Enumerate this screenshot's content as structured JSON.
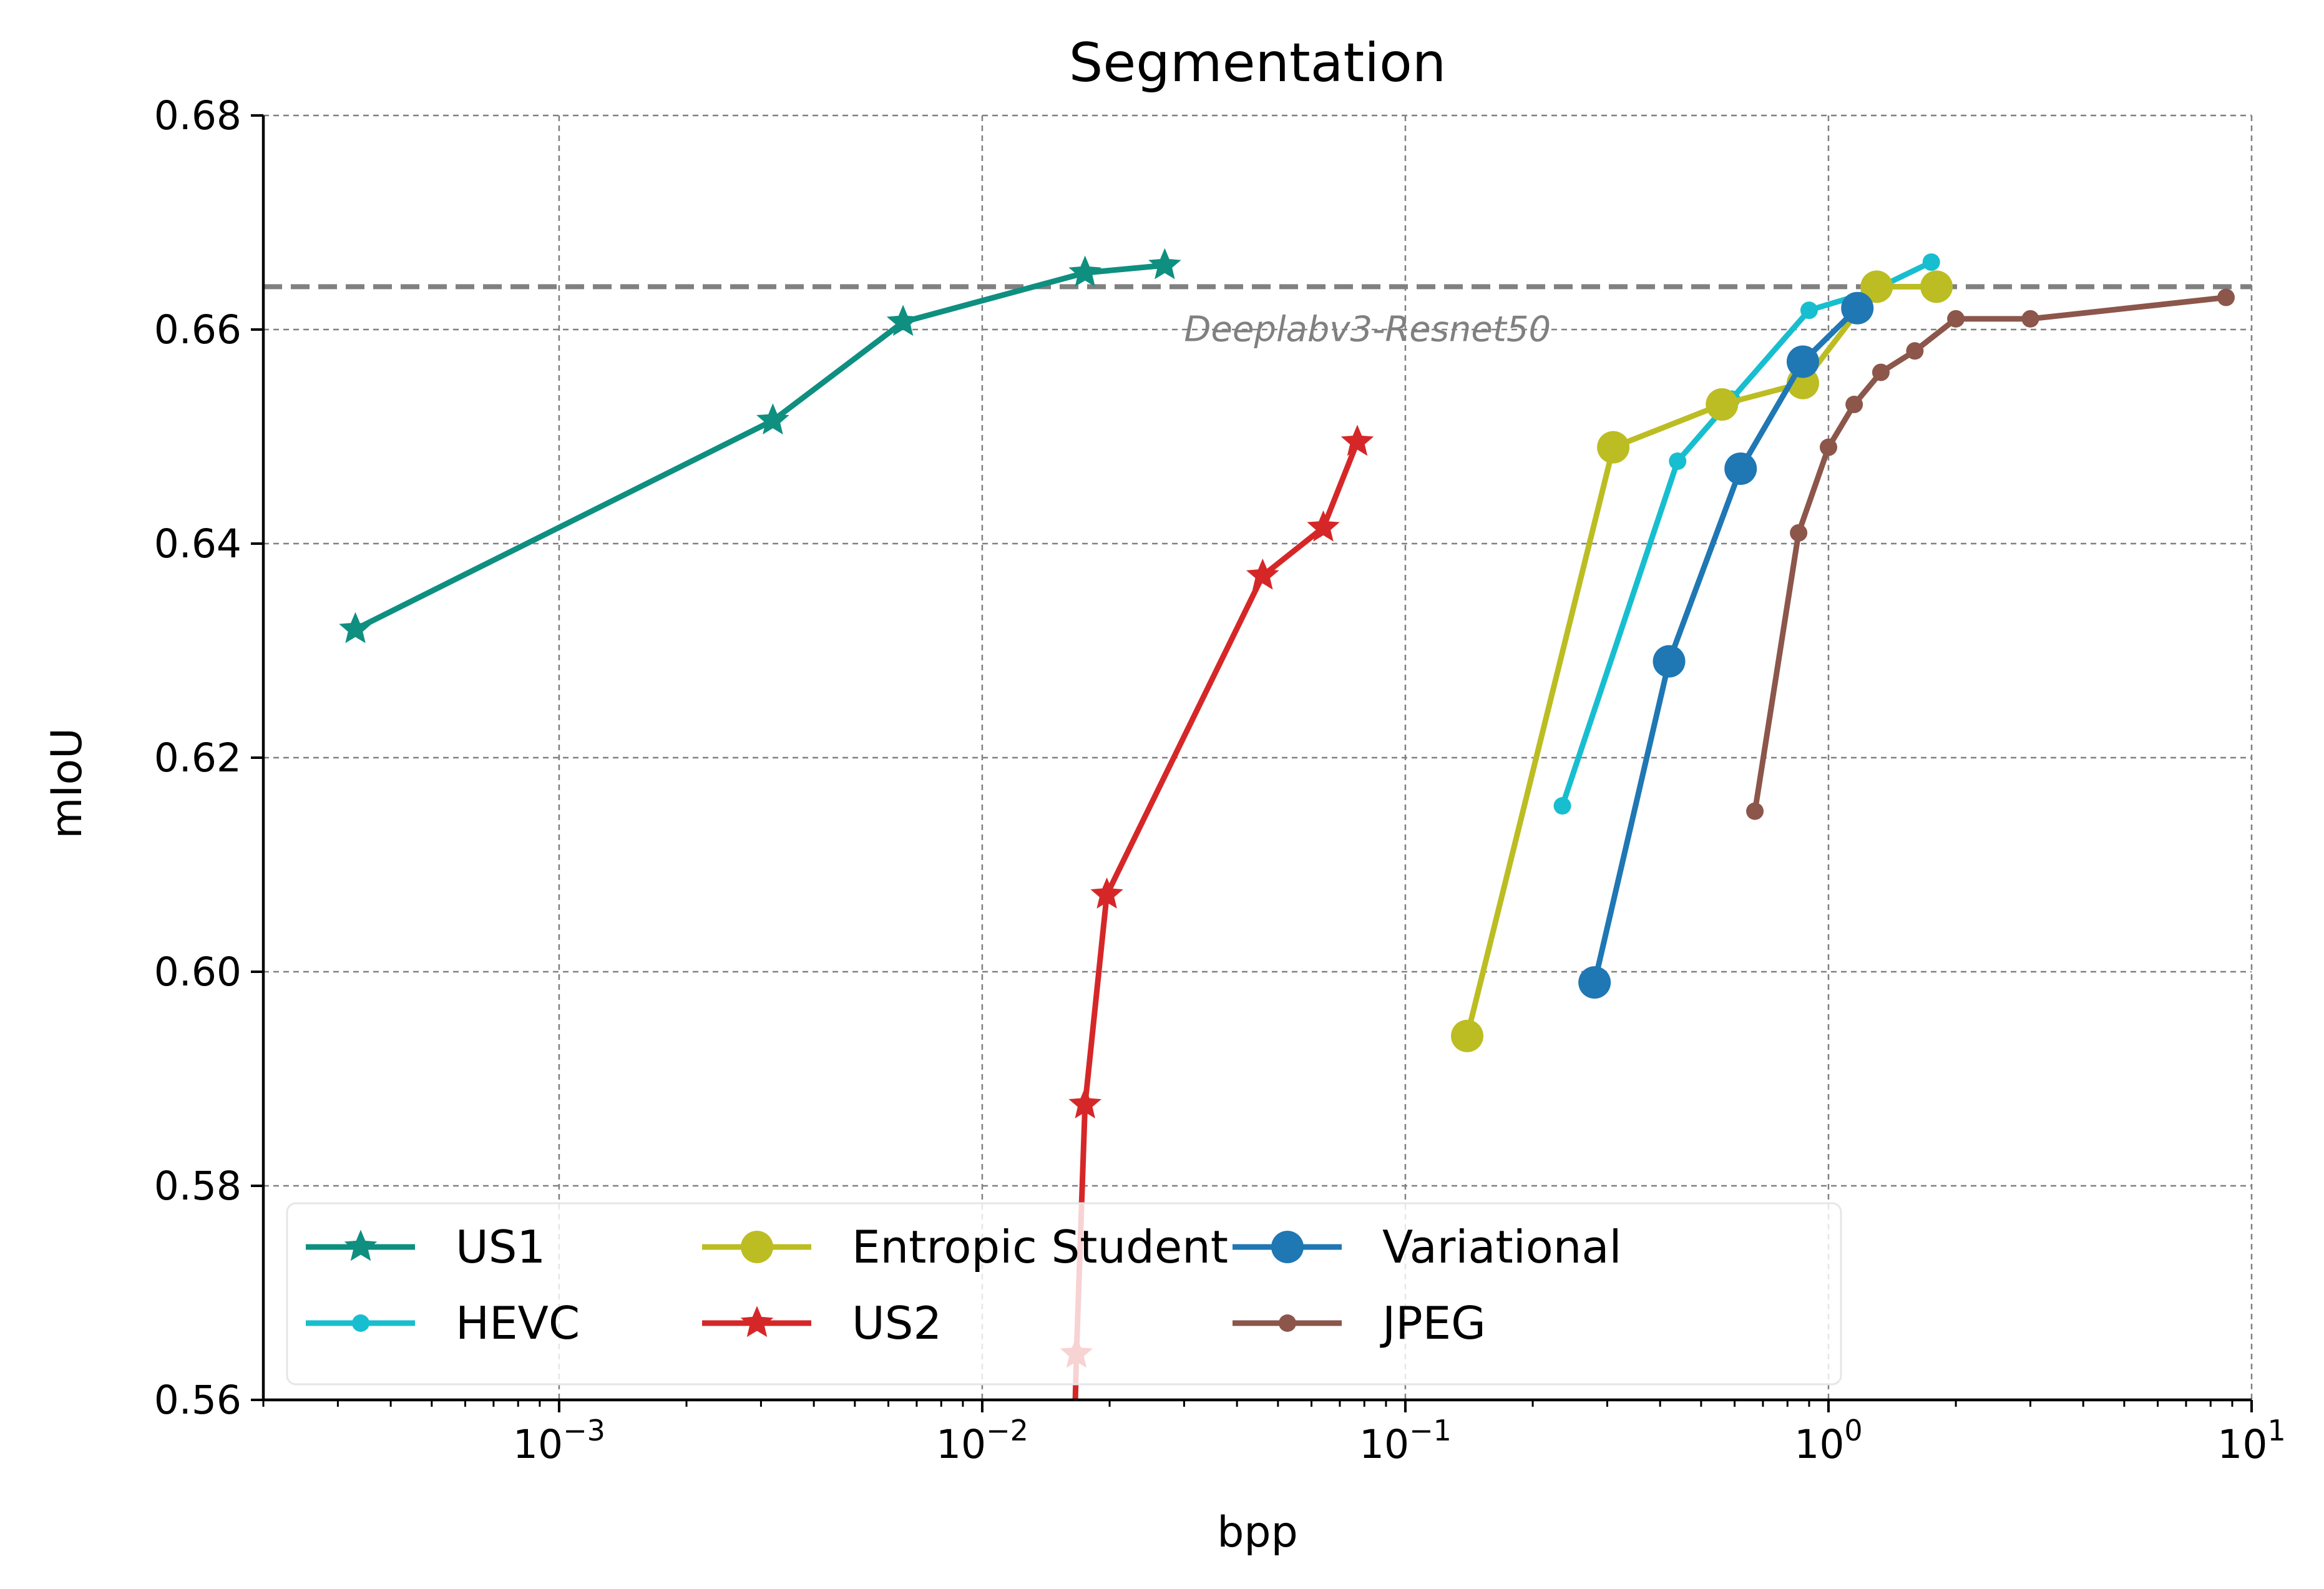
{
  "chart_data": {
    "type": "line",
    "title": "Segmentation",
    "xlabel": "bpp",
    "ylabel": "mIoU",
    "x_scale": "log",
    "xlim": [
      0.0002,
      10
    ],
    "ylim": [
      0.56,
      0.68
    ],
    "grid": true,
    "legend_position": "lower-left",
    "x_ticks": [
      {
        "value": 0.001,
        "base": "10",
        "exp": "−3"
      },
      {
        "value": 0.01,
        "base": "10",
        "exp": "−2"
      },
      {
        "value": 0.1,
        "base": "10",
        "exp": "−1"
      },
      {
        "value": 1,
        "base": "10",
        "exp": "0"
      },
      {
        "value": 10,
        "base": "10",
        "exp": "1"
      }
    ],
    "y_ticks": [
      {
        "value": 0.56,
        "label": "0.56"
      },
      {
        "value": 0.58,
        "label": "0.58"
      },
      {
        "value": 0.6,
        "label": "0.60"
      },
      {
        "value": 0.62,
        "label": "0.62"
      },
      {
        "value": 0.64,
        "label": "0.64"
      },
      {
        "value": 0.66,
        "label": "0.66"
      },
      {
        "value": 0.68,
        "label": "0.68"
      }
    ],
    "reference_line": {
      "y": 0.664,
      "label": "Deeplabv3-Resnet50",
      "color": "#808080"
    },
    "series": [
      {
        "name": "US1",
        "color": "#0e8f80",
        "marker": "star",
        "points": [
          [
            0.00033,
            0.632
          ],
          [
            0.0032,
            0.6515
          ],
          [
            0.0065,
            0.6607
          ],
          [
            0.0175,
            0.6653
          ],
          [
            0.027,
            0.666
          ]
        ]
      },
      {
        "name": "HEVC",
        "color": "#17becf",
        "marker": "small-circle",
        "points": [
          [
            0.235,
            0.6155
          ],
          [
            0.44,
            0.6477
          ],
          [
            0.59,
            0.6535
          ],
          [
            0.9,
            0.6618
          ],
          [
            1.25,
            0.6635
          ],
          [
            1.75,
            0.6663
          ]
        ]
      },
      {
        "name": "Entropic Student",
        "color": "#bcbd22",
        "marker": "big-circle",
        "points": [
          [
            0.14,
            0.594
          ],
          [
            0.31,
            0.649
          ],
          [
            0.56,
            0.653
          ],
          [
            0.87,
            0.655
          ],
          [
            1.3,
            0.664
          ],
          [
            1.8,
            0.664
          ]
        ]
      },
      {
        "name": "US2",
        "color": "#d62728",
        "marker": "star",
        "points": [
          [
            0.0165,
            0.556
          ],
          [
            0.0167,
            0.5643
          ],
          [
            0.0175,
            0.5876
          ],
          [
            0.0197,
            0.6072
          ],
          [
            0.046,
            0.637
          ],
          [
            0.064,
            0.6415
          ],
          [
            0.077,
            0.6495
          ]
        ]
      },
      {
        "name": "Variational",
        "color": "#1f77b4",
        "marker": "big-circle",
        "points": [
          [
            0.28,
            0.599
          ],
          [
            0.42,
            0.629
          ],
          [
            0.62,
            0.647
          ],
          [
            0.87,
            0.657
          ],
          [
            1.17,
            0.662
          ]
        ]
      },
      {
        "name": "JPEG",
        "color": "#8c564b",
        "marker": "small-circle",
        "points": [
          [
            0.67,
            0.615
          ],
          [
            0.85,
            0.641
          ],
          [
            1.0,
            0.649
          ],
          [
            1.15,
            0.653
          ],
          [
            1.33,
            0.656
          ],
          [
            1.6,
            0.658
          ],
          [
            2.0,
            0.661
          ],
          [
            3.0,
            0.661
          ],
          [
            8.7,
            0.663
          ]
        ]
      }
    ]
  }
}
